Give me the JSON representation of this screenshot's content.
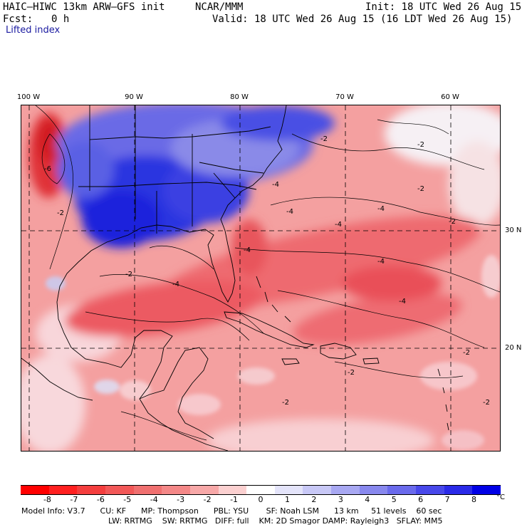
{
  "header": {
    "model": "HAIC–HIWC 13km ARW–GFS init",
    "org": "NCAR/MMM",
    "init": "Init: 18 UTC Wed 26 Aug 15",
    "fcst_label": "Fcst:",
    "fcst_value": "0 h",
    "valid": "Valid: 18 UTC Wed 26 Aug 15 (16 LDT Wed 26 Aug 15)",
    "field": "Lifted index"
  },
  "map": {
    "longitude_labels": [
      "100 W",
      "90 W",
      "80 W",
      "70 W",
      "60 W"
    ],
    "longitude_values": [
      -100,
      -90,
      -80,
      -70,
      -60
    ],
    "latitude_labels": [
      "30 N",
      "20 N"
    ],
    "latitude_values": [
      30,
      20
    ],
    "contour_labels": [
      "-2",
      "-2",
      "-2",
      "-2",
      "-2",
      "-2",
      "-2",
      "-2",
      "-2",
      "-2",
      "-4",
      "-4",
      "-4",
      "-4",
      "-4",
      "-4",
      "-4",
      "-4",
      "-6"
    ],
    "colors": {
      "negative": "#e8343c",
      "positive": "#1a28e8",
      "neutral": "#ffffff"
    }
  },
  "colorbar": {
    "labels": [
      "-8",
      "-7",
      "-6",
      "-5",
      "-4",
      "-3",
      "-2",
      "-1",
      "0",
      "1",
      "2",
      "3",
      "4",
      "5",
      "6",
      "7",
      "8"
    ],
    "unit": "°C",
    "colors": [
      "#ff0000",
      "#ff2020",
      "#f43e3e",
      "#f25858",
      "#f07070",
      "#f48888",
      "#f7a8a8",
      "#fbd0d0",
      "#ffffff",
      "#e4e4fa",
      "#c8c8f6",
      "#a8a8f2",
      "#8888ee",
      "#6a6aec",
      "#4848ea",
      "#2a2ae8",
      "#0000e6"
    ]
  },
  "footer": {
    "line1": "Model Info: V3.7      CU: KF      MP: Thompson      PBL: YSU       SF: Noah LSM      13 km     51 levels    60 sec",
    "line2": "LW: RRTMG    SW: RRTMG   DIFF: full    KM: 2D Smagor DAMP: Rayleigh3   SFLAY: MM5"
  }
}
